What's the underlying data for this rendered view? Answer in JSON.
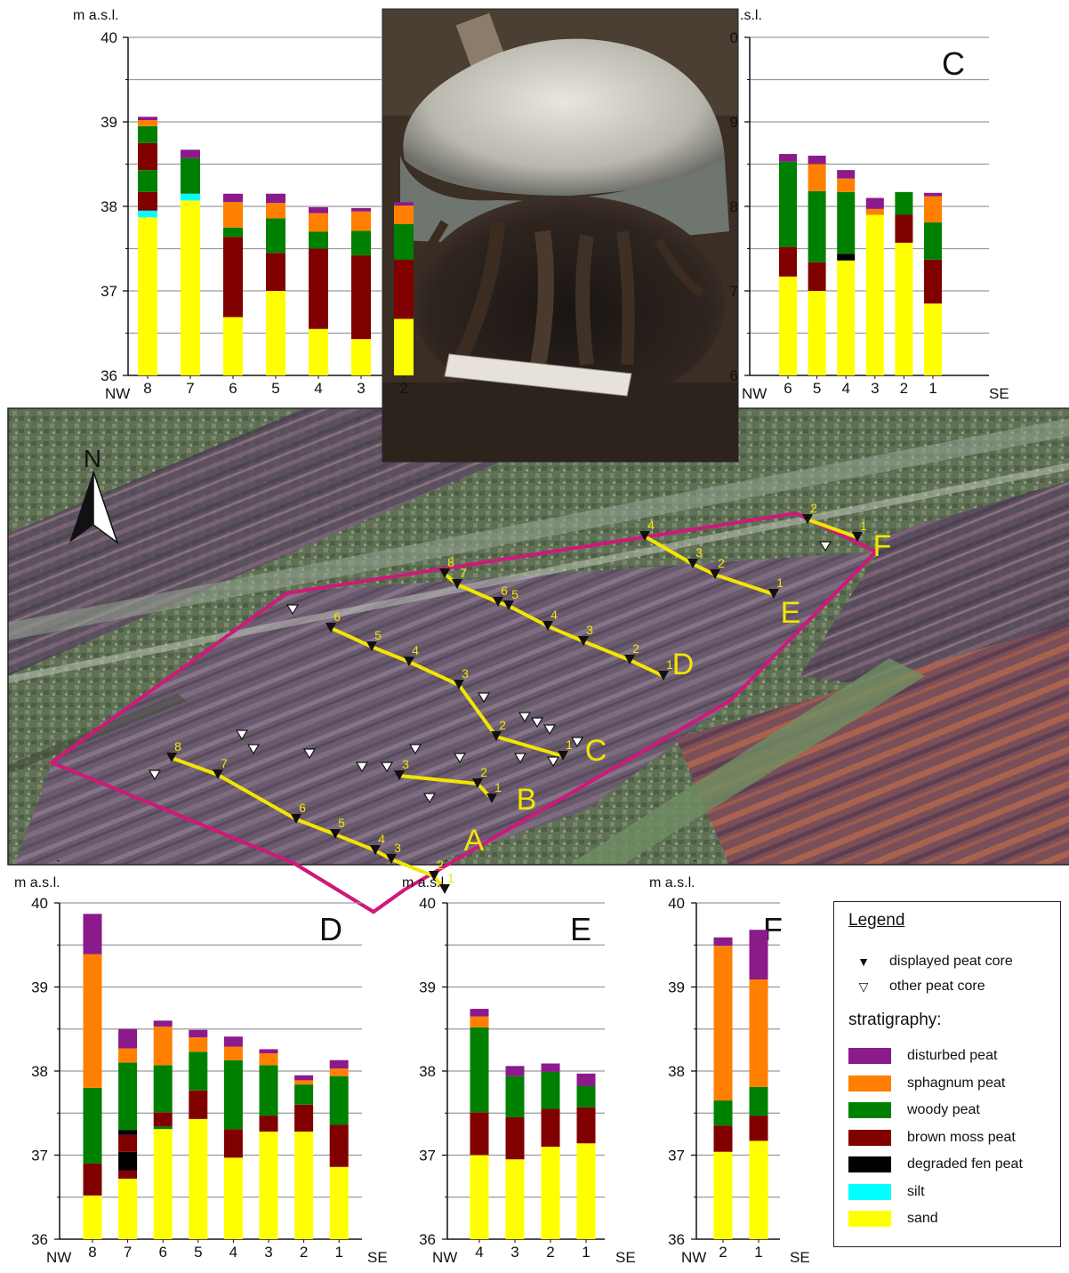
{
  "colors": {
    "disturbed": "#8b1a8b",
    "sphagnum": "#ff8000",
    "woody": "#008000",
    "brown": "#800000",
    "degraded": "#000000",
    "silt": "#00ffff",
    "sand": "#ffff00"
  },
  "map_labels": {
    "north": "N",
    "A": "A",
    "B": "B",
    "C": "C",
    "D": "D",
    "E": "E",
    "F": "F"
  },
  "transect_numbers": {
    "A": [
      "8",
      "7",
      "6",
      "5",
      "4",
      "3",
      "2",
      "1"
    ],
    "B": [
      "3",
      "2",
      "1"
    ],
    "C": [
      "6",
      "5",
      "4",
      "3",
      "2",
      "1"
    ],
    "D": [
      "8",
      "7",
      "6",
      "5",
      "4",
      "3",
      "2",
      "1"
    ],
    "E": [
      "4",
      "3",
      "2",
      "1"
    ],
    "F": [
      "2",
      "1"
    ]
  },
  "legend": {
    "title": "Legend",
    "displayed_core": "displayed peat core",
    "other_core": "other peat core",
    "stratigraphy_label": "stratigraphy:",
    "items": [
      {
        "key": "disturbed",
        "label": "disturbed peat"
      },
      {
        "key": "sphagnum",
        "label": "sphagnum peat"
      },
      {
        "key": "woody",
        "label": "woody peat"
      },
      {
        "key": "brown",
        "label": "brown moss peat"
      },
      {
        "key": "degraded",
        "label": "degraded fen peat"
      },
      {
        "key": "silt",
        "label": "silt"
      },
      {
        "key": "sand",
        "label": "sand"
      }
    ]
  },
  "chart_data": [
    {
      "type": "bar",
      "stacked": true,
      "panel": "A",
      "title": "",
      "ylabel": "m a.s.l.",
      "ylim": [
        36,
        40
      ],
      "yticks": [
        "36",
        "37",
        "38",
        "39",
        "40"
      ],
      "xlabel_left": "NW",
      "xlabel_right": "",
      "categories": [
        "8",
        "7",
        "6",
        "5",
        "4",
        "3",
        "2"
      ],
      "bars": [
        [
          [
            "sand",
            36,
            37.87
          ],
          [
            "silt",
            37.87,
            37.95
          ],
          [
            "brown",
            37.95,
            38.17
          ],
          [
            "woody",
            38.17,
            38.43
          ],
          [
            "brown",
            38.43,
            38.75
          ],
          [
            "woody",
            38.75,
            38.95
          ],
          [
            "sphagnum",
            38.95,
            39.02
          ],
          [
            "disturbed",
            39.02,
            39.06
          ]
        ],
        [
          [
            "sand",
            36,
            38.07
          ],
          [
            "silt",
            38.07,
            38.15
          ],
          [
            "woody",
            38.15,
            38.57
          ],
          [
            "disturbed",
            38.57,
            38.67
          ]
        ],
        [
          [
            "sand",
            36,
            36.69
          ],
          [
            "brown",
            36.69,
            37.64
          ],
          [
            "woody",
            37.64,
            37.75
          ],
          [
            "sphagnum",
            37.75,
            38.05
          ],
          [
            "disturbed",
            38.05,
            38.15
          ]
        ],
        [
          [
            "sand",
            36,
            37.0
          ],
          [
            "brown",
            37.0,
            37.45
          ],
          [
            "woody",
            37.45,
            37.86
          ],
          [
            "sphagnum",
            37.86,
            38.04
          ],
          [
            "disturbed",
            38.04,
            38.15
          ]
        ],
        [
          [
            "sand",
            36,
            36.55
          ],
          [
            "brown",
            36.55,
            37.5
          ],
          [
            "woody",
            37.5,
            37.7
          ],
          [
            "sphagnum",
            37.7,
            37.92
          ],
          [
            "disturbed",
            37.92,
            37.99
          ]
        ],
        [
          [
            "sand",
            36,
            36.43
          ],
          [
            "brown",
            36.43,
            37.42
          ],
          [
            "woody",
            37.42,
            37.71
          ],
          [
            "sphagnum",
            37.71,
            37.94
          ],
          [
            "disturbed",
            37.94,
            37.98
          ]
        ],
        [
          [
            "sand",
            36,
            36.67
          ],
          [
            "brown",
            36.67,
            37.37
          ],
          [
            "woody",
            37.37,
            37.79
          ],
          [
            "sphagnum",
            37.79,
            38.01
          ],
          [
            "disturbed",
            38.01,
            38.05
          ]
        ]
      ]
    },
    {
      "type": "bar",
      "stacked": true,
      "panel": "C",
      "title": "C",
      "ylabel": ".s.l.",
      "ylim": [
        36,
        40
      ],
      "yticks": [
        "6",
        "7",
        "8",
        "9",
        "0"
      ],
      "xlabel_left": "NW",
      "xlabel_right": "SE",
      "categories": [
        "6",
        "5",
        "4",
        "3",
        "2",
        "1"
      ],
      "bars": [
        [
          [
            "sand",
            36,
            37.17
          ],
          [
            "brown",
            37.17,
            37.52
          ],
          [
            "woody",
            37.52,
            38.53
          ],
          [
            "disturbed",
            38.53,
            38.62
          ]
        ],
        [
          [
            "sand",
            36,
            37.0
          ],
          [
            "brown",
            37.0,
            37.34
          ],
          [
            "woody",
            37.34,
            38.18
          ],
          [
            "sphagnum",
            38.18,
            38.5
          ],
          [
            "disturbed",
            38.5,
            38.6
          ]
        ],
        [
          [
            "sand",
            36,
            37.36
          ],
          [
            "degraded",
            37.36,
            37.44
          ],
          [
            "woody",
            37.44,
            38.17
          ],
          [
            "sphagnum",
            38.17,
            38.33
          ],
          [
            "disturbed",
            38.33,
            38.43
          ]
        ],
        [
          [
            "sand",
            36,
            37.9
          ],
          [
            "sphagnum",
            37.9,
            37.97
          ],
          [
            "disturbed",
            37.97,
            38.1
          ]
        ],
        [
          [
            "sand",
            36,
            37.57
          ],
          [
            "brown",
            37.57,
            37.9
          ],
          [
            "woody",
            37.9,
            38.17
          ]
        ],
        [
          [
            "sand",
            36,
            36.85
          ],
          [
            "brown",
            36.85,
            37.37
          ],
          [
            "woody",
            37.37,
            37.81
          ],
          [
            "sphagnum",
            37.81,
            38.12
          ],
          [
            "disturbed",
            38.12,
            38.16
          ]
        ]
      ]
    },
    {
      "type": "bar",
      "stacked": true,
      "panel": "D",
      "title": "D",
      "ylabel": "m a.s.l.",
      "ylim": [
        36,
        40
      ],
      "yticks": [
        "36",
        "37",
        "38",
        "39",
        "40"
      ],
      "xlabel_left": "NW",
      "xlabel_right": "SE",
      "categories": [
        "8",
        "7",
        "6",
        "5",
        "4",
        "3",
        "2",
        "1"
      ],
      "bars": [
        [
          [
            "sand",
            36,
            36.52
          ],
          [
            "brown",
            36.52,
            36.9
          ],
          [
            "woody",
            36.9,
            37.8
          ],
          [
            "sphagnum",
            37.8,
            39.39
          ],
          [
            "disturbed",
            39.39,
            39.87
          ]
        ],
        [
          [
            "sand",
            36,
            36.72
          ],
          [
            "brown",
            36.72,
            36.82
          ],
          [
            "degraded",
            36.82,
            37.04
          ],
          [
            "brown",
            37.04,
            37.24
          ],
          [
            "degraded",
            37.24,
            37.3
          ],
          [
            "woody",
            37.3,
            38.1
          ],
          [
            "sphagnum",
            38.1,
            38.27
          ],
          [
            "disturbed",
            38.27,
            38.5
          ]
        ],
        [
          [
            "sand",
            36,
            37.31
          ],
          [
            "woody",
            37.31,
            37.34
          ],
          [
            "brown",
            37.34,
            37.51
          ],
          [
            "woody",
            37.51,
            38.07
          ],
          [
            "sphagnum",
            38.07,
            38.53
          ],
          [
            "disturbed",
            38.53,
            38.6
          ]
        ],
        [
          [
            "sand",
            36,
            37.43
          ],
          [
            "brown",
            37.43,
            37.77
          ],
          [
            "woody",
            37.77,
            38.23
          ],
          [
            "sphagnum",
            38.23,
            38.4
          ],
          [
            "disturbed",
            38.4,
            38.49
          ]
        ],
        [
          [
            "sand",
            36,
            36.97
          ],
          [
            "brown",
            36.97,
            37.31
          ],
          [
            "woody",
            37.31,
            38.13
          ],
          [
            "sphagnum",
            38.13,
            38.29
          ],
          [
            "disturbed",
            38.29,
            38.41
          ]
        ],
        [
          [
            "sand",
            36,
            37.28
          ],
          [
            "brown",
            37.28,
            37.47
          ],
          [
            "woody",
            37.47,
            38.07
          ],
          [
            "sphagnum",
            38.07,
            38.21
          ],
          [
            "disturbed",
            38.21,
            38.26
          ]
        ],
        [
          [
            "sand",
            36,
            37.28
          ],
          [
            "brown",
            37.28,
            37.6
          ],
          [
            "woody",
            37.6,
            37.84
          ],
          [
            "sphagnum",
            37.84,
            37.89
          ],
          [
            "disturbed",
            37.89,
            37.95
          ]
        ],
        [
          [
            "sand",
            36,
            36.86
          ],
          [
            "brown",
            36.86,
            37.36
          ],
          [
            "woody",
            37.36,
            37.94
          ],
          [
            "sphagnum",
            37.94,
            38.03
          ],
          [
            "disturbed",
            38.03,
            38.13
          ]
        ]
      ]
    },
    {
      "type": "bar",
      "stacked": true,
      "panel": "E",
      "title": "E",
      "ylabel": "m a.s.l.",
      "ylim": [
        36,
        40
      ],
      "yticks": [
        "36",
        "37",
        "38",
        "39",
        "40"
      ],
      "xlabel_left": "NW",
      "xlabel_right": "SE",
      "categories": [
        "4",
        "3",
        "2",
        "1"
      ],
      "bars": [
        [
          [
            "sand",
            36,
            37.0
          ],
          [
            "brown",
            37.0,
            37.51
          ],
          [
            "woody",
            37.51,
            38.52
          ],
          [
            "sphagnum",
            38.52,
            38.65
          ],
          [
            "disturbed",
            38.65,
            38.74
          ]
        ],
        [
          [
            "sand",
            36,
            36.95
          ],
          [
            "brown",
            36.95,
            37.45
          ],
          [
            "woody",
            37.45,
            37.94
          ],
          [
            "disturbed",
            37.94,
            38.06
          ]
        ],
        [
          [
            "sand",
            36,
            37.1
          ],
          [
            "brown",
            37.1,
            37.55
          ],
          [
            "woody",
            37.55,
            37.99
          ],
          [
            "disturbed",
            37.99,
            38.09
          ]
        ],
        [
          [
            "sand",
            36,
            37.14
          ],
          [
            "brown",
            37.14,
            37.57
          ],
          [
            "woody",
            37.57,
            37.82
          ],
          [
            "disturbed",
            37.82,
            37.97
          ]
        ]
      ]
    },
    {
      "type": "bar",
      "stacked": true,
      "panel": "F",
      "title": "F",
      "ylabel": "m a.s.l.",
      "ylim": [
        36,
        40
      ],
      "yticks": [
        "36",
        "37",
        "38",
        "39",
        "40"
      ],
      "xlabel_left": "NW",
      "xlabel_right": "SE",
      "categories": [
        "2",
        "1"
      ],
      "bars": [
        [
          [
            "sand",
            36,
            37.04
          ],
          [
            "brown",
            37.04,
            37.35
          ],
          [
            "woody",
            37.35,
            37.65
          ],
          [
            "sphagnum",
            37.65,
            39.49
          ],
          [
            "disturbed",
            39.49,
            39.59
          ]
        ],
        [
          [
            "sand",
            36,
            37.17
          ],
          [
            "brown",
            37.17,
            37.47
          ],
          [
            "woody",
            37.47,
            37.81
          ],
          [
            "sphagnum",
            37.81,
            39.09
          ],
          [
            "disturbed",
            39.09,
            39.68
          ]
        ]
      ]
    }
  ]
}
